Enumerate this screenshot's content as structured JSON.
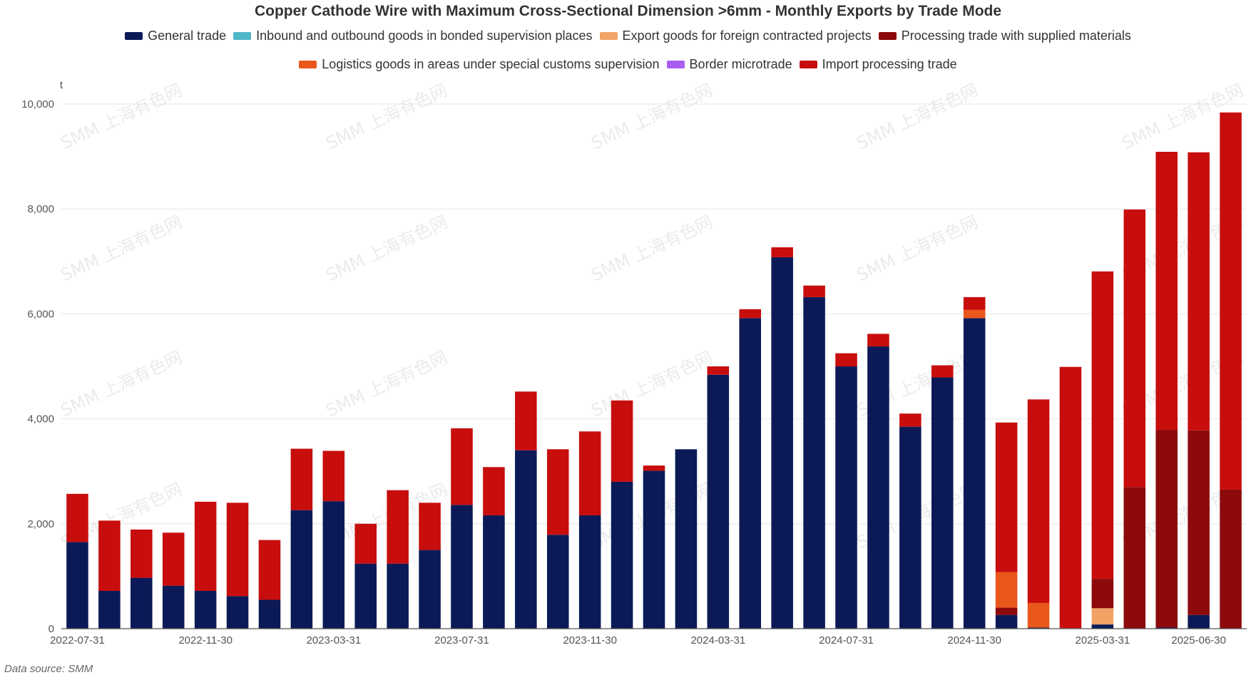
{
  "chart_data": {
    "type": "bar",
    "stacked": true,
    "title": "Copper Cathode Wire with Maximum Cross-Sectional Dimension >6mm - Monthly Exports by Trade Mode",
    "ylabel": "t",
    "ylim": [
      0,
      10000
    ],
    "yticks": [
      0,
      2000,
      4000,
      6000,
      8000,
      10000
    ],
    "ytick_labels": [
      "0",
      "2,000",
      "4,000",
      "6,000",
      "8,000",
      "10,000"
    ],
    "grid": true,
    "legend_position": "top-center",
    "x_tick_labels": [
      {
        "index": 0,
        "label": "2022-07-31"
      },
      {
        "index": 4,
        "label": "2022-11-30"
      },
      {
        "index": 8,
        "label": "2023-03-31"
      },
      {
        "index": 12,
        "label": "2023-07-31"
      },
      {
        "index": 16,
        "label": "2023-11-30"
      },
      {
        "index": 20,
        "label": "2024-03-31"
      },
      {
        "index": 24,
        "label": "2024-07-31"
      },
      {
        "index": 28,
        "label": "2024-11-30"
      },
      {
        "index": 32,
        "label": "2025-03-31"
      },
      {
        "index": 35,
        "label": "2025-06-30"
      }
    ],
    "categories": [
      "2022-07-31",
      "2022-08-31",
      "2022-09-30",
      "2022-10-31",
      "2022-11-30",
      "2022-12-31",
      "2023-01-31",
      "2023-02-28",
      "2023-03-31",
      "2023-04-30",
      "2023-05-31",
      "2023-06-30",
      "2023-07-31",
      "2023-08-31",
      "2023-09-30",
      "2023-10-31",
      "2023-11-30",
      "2023-12-31",
      "2024-01-31",
      "2024-02-29",
      "2024-03-31",
      "2024-04-30",
      "2024-05-31",
      "2024-06-30",
      "2024-07-31",
      "2024-08-31",
      "2024-09-30",
      "2024-10-31",
      "2024-11-30",
      "2024-12-31",
      "2025-01-31",
      "2025-02-28",
      "2025-03-31",
      "2025-04-30",
      "2025-05-31",
      "2025-06-30",
      "2025-07-31"
    ],
    "series": [
      {
        "name": "General trade",
        "color": "#0b1a57",
        "values": [
          1650,
          720,
          970,
          820,
          720,
          620,
          550,
          2260,
          2430,
          1240,
          1240,
          1500,
          2360,
          2160,
          3400,
          1790,
          2160,
          2800,
          3010,
          3420,
          4840,
          5920,
          7080,
          6320,
          5000,
          5380,
          3850,
          4790,
          5920,
          260,
          20,
          0,
          80,
          0,
          20,
          260,
          0
        ]
      },
      {
        "name": "Inbound and outbound goods in bonded supervision places",
        "color": "#4fb7c7",
        "values": [
          0,
          0,
          0,
          0,
          0,
          0,
          0,
          0,
          0,
          0,
          0,
          0,
          0,
          0,
          0,
          0,
          0,
          0,
          0,
          0,
          0,
          0,
          0,
          0,
          0,
          0,
          0,
          0,
          0,
          0,
          0,
          0,
          0,
          0,
          0,
          0,
          0
        ]
      },
      {
        "name": "Export goods for foreign contracted projects",
        "color": "#f1a465",
        "values": [
          0,
          0,
          0,
          0,
          0,
          0,
          0,
          0,
          0,
          0,
          0,
          0,
          0,
          0,
          0,
          0,
          0,
          0,
          0,
          0,
          0,
          0,
          0,
          0,
          0,
          0,
          0,
          0,
          0,
          0,
          0,
          0,
          310,
          0,
          0,
          0,
          0
        ]
      },
      {
        "name": "Processing trade with supplied materials",
        "color": "#8c0a0a",
        "values": [
          0,
          0,
          0,
          0,
          0,
          0,
          0,
          0,
          0,
          0,
          0,
          0,
          0,
          0,
          0,
          0,
          0,
          0,
          0,
          0,
          0,
          0,
          0,
          0,
          0,
          0,
          0,
          0,
          0,
          140,
          0,
          10,
          560,
          2700,
          3770,
          3520,
          2650
        ]
      },
      {
        "name": "Logistics goods in areas under special customs supervision",
        "color": "#e9571b",
        "values": [
          0,
          0,
          0,
          0,
          0,
          0,
          0,
          0,
          0,
          0,
          0,
          0,
          0,
          0,
          0,
          0,
          0,
          0,
          0,
          0,
          0,
          0,
          0,
          0,
          0,
          0,
          0,
          0,
          160,
          680,
          470,
          0,
          0,
          0,
          0,
          0,
          0
        ]
      },
      {
        "name": "Border microtrade",
        "color": "#a95ef2",
        "values": [
          0,
          0,
          0,
          0,
          0,
          0,
          0,
          0,
          0,
          0,
          0,
          0,
          0,
          0,
          0,
          0,
          0,
          0,
          0,
          0,
          0,
          0,
          0,
          0,
          0,
          0,
          0,
          0,
          0,
          0,
          0,
          0,
          0,
          0,
          0,
          0,
          0
        ]
      },
      {
        "name": "Import processing trade",
        "color": "#c80d0d",
        "values": [
          920,
          1340,
          920,
          1010,
          1700,
          1780,
          1140,
          1170,
          960,
          760,
          1400,
          900,
          1460,
          920,
          1120,
          1630,
          1600,
          1550,
          100,
          0,
          160,
          170,
          190,
          220,
          250,
          240,
          250,
          230,
          240,
          2850,
          3880,
          4980,
          5860,
          5290,
          5300,
          5300,
          7190
        ]
      }
    ]
  },
  "watermark": "SMM 上海有色网",
  "footer": {
    "source": "Data source:  SMM"
  }
}
